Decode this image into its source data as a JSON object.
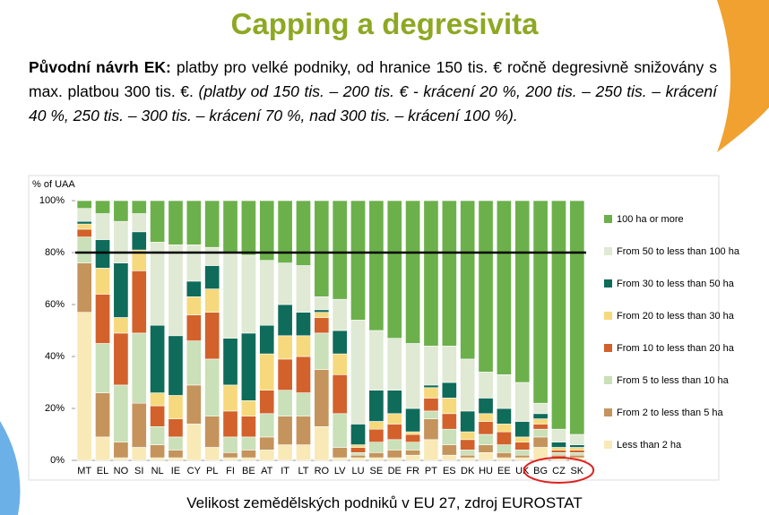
{
  "slide": {
    "title": "Capping  a degresivita",
    "text_bold": "Původní návrh EK:",
    "text_normal": " platby pro velké podniky, od hranice 150 tis. € ročně degresivně snižovány s max. platbou 300 tis. €. ",
    "text_italic": "(platby od 150 tis. – 200 tis. € - krácení 20 %, 200 tis. – 250 tis. – krácení 40 %, 250 tis. – 300 tis. – krácení 70 %, nad 300 tis. – krácení 100 %).",
    "caption": "Velikost zemědělských podniků v EU 27, zdroj EUROSTAT"
  },
  "chart_data": {
    "type": "stacked_bar",
    "y_label": "% of UAA",
    "categories": [
      "MT",
      "EL",
      "NO",
      "SI",
      "NL",
      "IE",
      "CY",
      "PL",
      "FI",
      "BE",
      "AT",
      "IT",
      "LT",
      "RO",
      "LV",
      "LU",
      "SE",
      "DE",
      "FR",
      "PT",
      "ES",
      "DK",
      "HU",
      "EE",
      "UK",
      "BG",
      "CZ",
      "SK"
    ],
    "series": [
      {
        "name": "Less than 2 ha",
        "color": "#f8e9b6",
        "values": [
          57,
          9,
          1,
          5,
          1,
          1,
          14,
          5,
          1,
          1,
          4,
          6,
          6,
          13,
          1,
          1,
          1,
          1,
          2,
          8,
          2,
          1,
          3,
          1,
          1,
          5,
          1,
          1
        ]
      },
      {
        "name": "From 2 to less than 5 ha",
        "color": "#c4945c",
        "values": [
          19,
          17,
          6,
          17,
          5,
          3,
          15,
          12,
          2,
          3,
          5,
          11,
          11,
          22,
          4,
          1,
          2,
          3,
          2,
          8,
          4,
          1,
          3,
          2,
          1,
          4,
          1,
          1
        ]
      },
      {
        "name": "From 5 to less than 10 ha",
        "color": "#c9e0b8",
        "values": [
          10,
          19,
          22,
          27,
          7,
          5,
          17,
          22,
          6,
          5,
          9,
          10,
          9,
          14,
          13,
          1,
          4,
          4,
          3,
          3,
          6,
          2,
          4,
          3,
          2,
          3,
          1,
          1
        ]
      },
      {
        "name": "From 10 to less than 20 ha",
        "color": "#d2612b",
        "values": [
          3,
          19,
          20,
          24,
          8,
          7,
          10,
          18,
          10,
          8,
          9,
          12,
          14,
          6,
          15,
          2,
          5,
          6,
          3,
          5,
          6,
          4,
          5,
          5,
          3,
          2,
          1,
          1
        ]
      },
      {
        "name": "From 20 to less than 30 ha",
        "color": "#f6d97c",
        "values": [
          2,
          10,
          6,
          8,
          5,
          9,
          7,
          9,
          10,
          6,
          14,
          9,
          8,
          2,
          8,
          1,
          3,
          4,
          1,
          4,
          6,
          3,
          3,
          3,
          2,
          2,
          1,
          1
        ]
      },
      {
        "name": "From 30 to less than 50 ha",
        "color": "#0f6b5a",
        "values": [
          1,
          11,
          21,
          7,
          26,
          23,
          6,
          9,
          18,
          26,
          11,
          12,
          9,
          1,
          9,
          8,
          12,
          9,
          9,
          1,
          6,
          8,
          6,
          6,
          6,
          2,
          2,
          1
        ]
      },
      {
        "name": "From 50 to less than 100 ha",
        "color": "#dfe9d3",
        "values": [
          5,
          10,
          16,
          7,
          32,
          35,
          14,
          7,
          33,
          30,
          25,
          16,
          18,
          5,
          12,
          40,
          23,
          20,
          25,
          15,
          14,
          20,
          10,
          13,
          15,
          4,
          5,
          4
        ]
      },
      {
        "name": "100 ha or more",
        "color": "#6cb04b",
        "values": [
          3,
          5,
          8,
          5,
          16,
          17,
          17,
          18,
          20,
          21,
          23,
          24,
          25,
          37,
          38,
          46,
          50,
          53,
          55,
          56,
          56,
          61,
          66,
          67,
          70,
          78,
          88,
          90
        ]
      }
    ],
    "ylim": [
      0,
      100
    ],
    "yticks": [
      {
        "value": 0,
        "label": "0%"
      },
      {
        "value": 20,
        "label": "20%"
      },
      {
        "value": 40,
        "label": "40%"
      },
      {
        "value": 60,
        "label": "60%"
      },
      {
        "value": 80,
        "label": "80%"
      },
      {
        "value": 100,
        "label": "100%"
      }
    ],
    "reference_line": 80,
    "legend": "right"
  }
}
